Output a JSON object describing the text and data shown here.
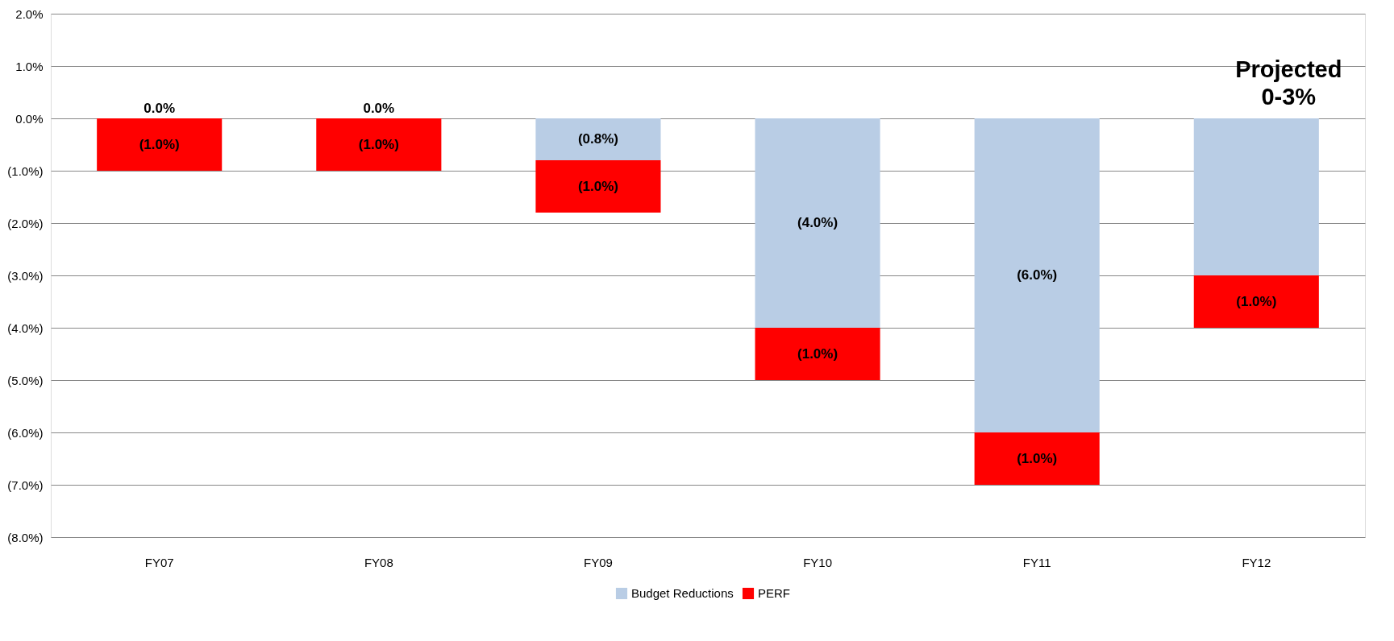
{
  "chart_data": {
    "type": "bar",
    "stacked": true,
    "categories": [
      "FY07",
      "FY08",
      "FY09",
      "FY10",
      "FY11",
      "FY12"
    ],
    "series": [
      {
        "name": "Budget Reductions",
        "color": "#b9cde5",
        "values": [
          0.0,
          0.0,
          -0.8,
          -4.0,
          -6.0,
          -3.0
        ],
        "value_labels": [
          "0.0%",
          "0.0%",
          "(0.8%)",
          "(4.0%)",
          "(6.0%)",
          null
        ]
      },
      {
        "name": "PERF",
        "color": "#ff0000",
        "values": [
          -1.0,
          -1.0,
          -1.0,
          -1.0,
          -1.0,
          -1.0
        ],
        "value_labels": [
          "(1.0%)",
          "(1.0%)",
          "(1.0%)",
          "(1.0%)",
          "(1.0%)",
          "(1.0%)"
        ]
      }
    ],
    "ylim": [
      -8,
      2
    ],
    "yticks": [
      {
        "value": 2,
        "label": "2.0%"
      },
      {
        "value": 1,
        "label": "1.0%"
      },
      {
        "value": 0,
        "label": "0.0%"
      },
      {
        "value": -1,
        "label": "(1.0%)"
      },
      {
        "value": -2,
        "label": "(2.0%)"
      },
      {
        "value": -3,
        "label": "(3.0%)"
      },
      {
        "value": -4,
        "label": "(4.0%)"
      },
      {
        "value": -5,
        "label": "(5.0%)"
      },
      {
        "value": -6,
        "label": "(6.0%)"
      },
      {
        "value": -7,
        "label": "(7.0%)"
      },
      {
        "value": -8,
        "label": "(8.0%)"
      }
    ],
    "annotations": [
      "Projected 0-3%"
    ],
    "grid": "y",
    "legend": "bottom"
  }
}
